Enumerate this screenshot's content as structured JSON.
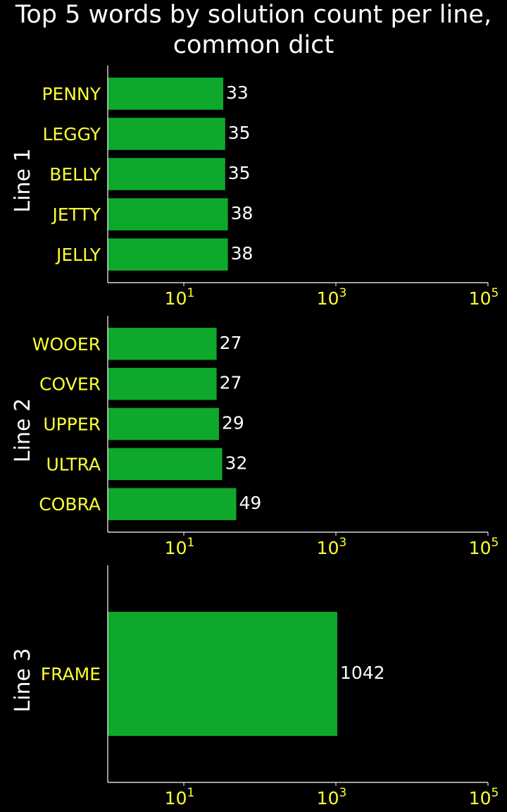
{
  "title_line1": "Top 5 words by solution count per line,",
  "title_line2": "common dict",
  "colors": {
    "background": "#000000",
    "bar": "#0ea92c",
    "category_text": "#ffff33",
    "value_text": "#ffffff",
    "axis": "#ffffff"
  },
  "chart_data": [
    {
      "type": "bar",
      "orientation": "horizontal",
      "xscale": "log",
      "xlim": [
        1,
        100000
      ],
      "xticks": [
        {
          "base": "10",
          "exp": "1"
        },
        {
          "base": "10",
          "exp": "3"
        },
        {
          "base": "10",
          "exp": "5"
        }
      ],
      "ylabel": "Line 1",
      "categories": [
        "PENNY",
        "LEGGY",
        "BELLY",
        "JETTY",
        "JELLY"
      ],
      "values": [
        33,
        35,
        35,
        38,
        38
      ]
    },
    {
      "type": "bar",
      "orientation": "horizontal",
      "xscale": "log",
      "xlim": [
        1,
        100000
      ],
      "xticks": [
        {
          "base": "10",
          "exp": "1"
        },
        {
          "base": "10",
          "exp": "3"
        },
        {
          "base": "10",
          "exp": "5"
        }
      ],
      "ylabel": "Line 2",
      "categories": [
        "WOOER",
        "COVER",
        "UPPER",
        "ULTRA",
        "COBRA"
      ],
      "values": [
        27,
        27,
        29,
        32,
        49
      ]
    },
    {
      "type": "bar",
      "orientation": "horizontal",
      "xscale": "log",
      "xlim": [
        1,
        100000
      ],
      "xticks": [
        {
          "base": "10",
          "exp": "1"
        },
        {
          "base": "10",
          "exp": "3"
        },
        {
          "base": "10",
          "exp": "5"
        }
      ],
      "ylabel": "Line 3",
      "categories": [
        "FRAME"
      ],
      "values": [
        1042
      ]
    }
  ]
}
